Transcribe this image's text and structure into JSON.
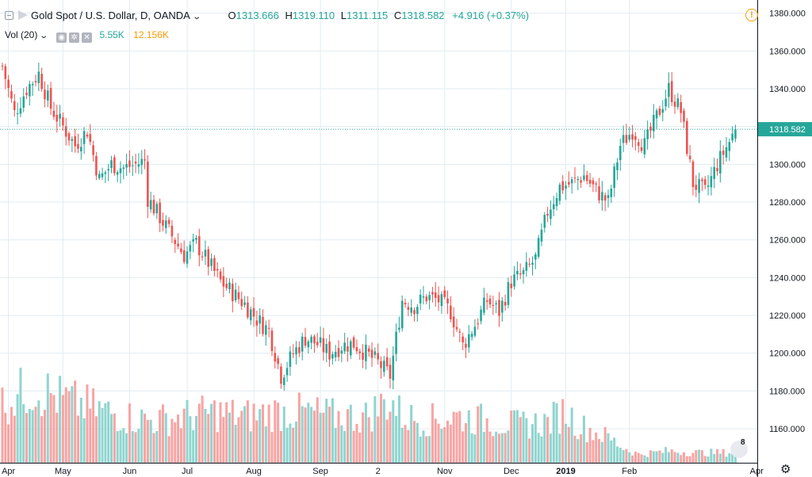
{
  "legend": {
    "symbol": "Gold Spot / U.S. Dollar, D, OANDA",
    "open_label": "O",
    "open": "1313.666",
    "high_label": "H",
    "high": "1319.110",
    "low_label": "L",
    "low": "1311.115",
    "close_label": "C",
    "close": "1318.582",
    "change": "+4.916 (+0.37%)"
  },
  "volume_legend": {
    "name": "Vol (20)",
    "value1": "5.55K",
    "value2": "12.156K",
    "value1_color": "#26a69a",
    "value2_color": "#ff9800"
  },
  "colors": {
    "up": "#26a69a",
    "down": "#ef5350",
    "vol_up": "#8fd5cf",
    "vol_down": "#f7a4a3",
    "grid": "#e1ecf2",
    "last_price_line": "#26a69a"
  },
  "icons": {
    "alert": "alert-icon",
    "settings": "gear-icon",
    "logo": "tradingview-logo",
    "logo_badge": "8"
  },
  "chart_data": {
    "type": "candlestick",
    "title": "Gold Spot / U.S. Dollar, D, OANDA",
    "last_price": 1318.582,
    "ylim": [
      1142,
      1387
    ],
    "y_ticks": [
      "1380.000",
      "1360.000",
      "1340.000",
      "1320.000",
      "1300.000",
      "1280.000",
      "1260.000",
      "1240.000",
      "1220.000",
      "1200.000",
      "1180.000",
      "1160.000"
    ],
    "x_ticks": [
      {
        "label": "Apr",
        "index": 2
      },
      {
        "label": "May",
        "index": 20
      },
      {
        "label": "Jun",
        "index": 42
      },
      {
        "label": "Jul",
        "index": 61
      },
      {
        "label": "Aug",
        "index": 83
      },
      {
        "label": "Sep",
        "index": 105
      },
      {
        "label": "2",
        "index": 124
      },
      {
        "label": "Nov",
        "index": 146
      },
      {
        "label": "Dec",
        "index": 168
      },
      {
        "label": "2019",
        "index": 186
      },
      {
        "label": "Feb",
        "index": 207
      },
      {
        "label": "Apr",
        "index": 249
      }
    ],
    "grid": true,
    "bar_count": 243,
    "close_anchors": [
      [
        0,
        1352
      ],
      [
        4,
        1327
      ],
      [
        8,
        1340
      ],
      [
        12,
        1348
      ],
      [
        16,
        1330
      ],
      [
        20,
        1320
      ],
      [
        24,
        1310
      ],
      [
        28,
        1318
      ],
      [
        32,
        1292
      ],
      [
        36,
        1300
      ],
      [
        40,
        1298
      ],
      [
        44,
        1300
      ],
      [
        47,
        1302
      ],
      [
        48,
        1282
      ],
      [
        52,
        1272
      ],
      [
        56,
        1262
      ],
      [
        60,
        1252
      ],
      [
        64,
        1258
      ],
      [
        68,
        1248
      ],
      [
        72,
        1238
      ],
      [
        76,
        1232
      ],
      [
        80,
        1226
      ],
      [
        84,
        1218
      ],
      [
        88,
        1212
      ],
      [
        92,
        1188
      ],
      [
        96,
        1200
      ],
      [
        100,
        1208
      ],
      [
        104,
        1205
      ],
      [
        108,
        1200
      ],
      [
        112,
        1204
      ],
      [
        116,
        1205
      ],
      [
        120,
        1200
      ],
      [
        124,
        1195
      ],
      [
        128,
        1188
      ],
      [
        132,
        1228
      ],
      [
        136,
        1225
      ],
      [
        140,
        1230
      ],
      [
        144,
        1228
      ],
      [
        148,
        1222
      ],
      [
        152,
        1204
      ],
      [
        156,
        1215
      ],
      [
        160,
        1228
      ],
      [
        164,
        1222
      ],
      [
        168,
        1238
      ],
      [
        172,
        1242
      ],
      [
        176,
        1250
      ],
      [
        180,
        1275
      ],
      [
        184,
        1288
      ],
      [
        188,
        1290
      ],
      [
        192,
        1294
      ],
      [
        196,
        1286
      ],
      [
        200,
        1280
      ],
      [
        204,
        1310
      ],
      [
        208,
        1318
      ],
      [
        212,
        1310
      ],
      [
        216,
        1325
      ],
      [
        220,
        1340
      ],
      [
        224,
        1328
      ],
      [
        228,
        1290
      ],
      [
        232,
        1285
      ],
      [
        236,
        1300
      ],
      [
        240,
        1312
      ],
      [
        242,
        1318.58
      ]
    ],
    "volume_ylim": [
      0,
      160
    ],
    "volume_anchors": [
      [
        0,
        70
      ],
      [
        10,
        90
      ],
      [
        20,
        75
      ],
      [
        30,
        65
      ],
      [
        40,
        55
      ],
      [
        50,
        50
      ],
      [
        60,
        55
      ],
      [
        70,
        60
      ],
      [
        80,
        55
      ],
      [
        90,
        60
      ],
      [
        100,
        60
      ],
      [
        110,
        55
      ],
      [
        120,
        55
      ],
      [
        128,
        75
      ],
      [
        132,
        55
      ],
      [
        140,
        50
      ],
      [
        150,
        55
      ],
      [
        160,
        50
      ],
      [
        170,
        45
      ],
      [
        180,
        48
      ],
      [
        186,
        62
      ],
      [
        190,
        45
      ],
      [
        200,
        30
      ],
      [
        205,
        18
      ],
      [
        210,
        10
      ],
      [
        220,
        14
      ],
      [
        230,
        12
      ],
      [
        240,
        12
      ],
      [
        242,
        15
      ]
    ]
  }
}
